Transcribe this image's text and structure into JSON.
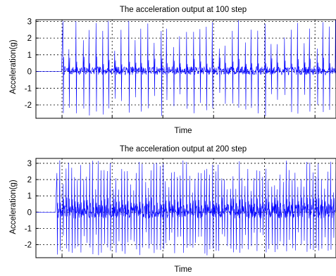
{
  "chart_data": [
    {
      "type": "line",
      "title": "The acceleration output at 100 step",
      "xlabel": "Time",
      "ylabel": "Acceleration(g)",
      "ylim": [
        -2.8,
        3.1
      ],
      "yticks": [
        3,
        2,
        1,
        0,
        -1,
        -2
      ],
      "ytick_labels": [
        "3",
        "2",
        "1",
        "0",
        "-1",
        "-2"
      ],
      "grid": true,
      "grid_style": "dotted",
      "xtick_labels_visible": false,
      "series": [
        {
          "color": "#0000ff",
          "onset_fraction": 0.09,
          "pulse_count": 42,
          "peak_max": 3.1,
          "peak_min": -2.7,
          "baseline_noise": 0.25
        }
      ]
    },
    {
      "type": "line",
      "title": "The acceleration output at 200 step",
      "xlabel": "Time",
      "ylabel": "Acceleration(g)",
      "ylim": [
        -2.8,
        3.3
      ],
      "yticks": [
        3,
        2,
        1,
        0,
        -1,
        -2
      ],
      "ytick_labels": [
        "3",
        "2",
        "1",
        "0",
        "-1",
        "-2"
      ],
      "grid": true,
      "grid_style": "dotted",
      "xtick_labels_visible": false,
      "series": [
        {
          "color": "#0000ff",
          "onset_fraction": 0.07,
          "pulse_count": 95,
          "peak_max": 3.2,
          "peak_min": -2.7,
          "baseline_noise": 0.45
        }
      ]
    }
  ]
}
